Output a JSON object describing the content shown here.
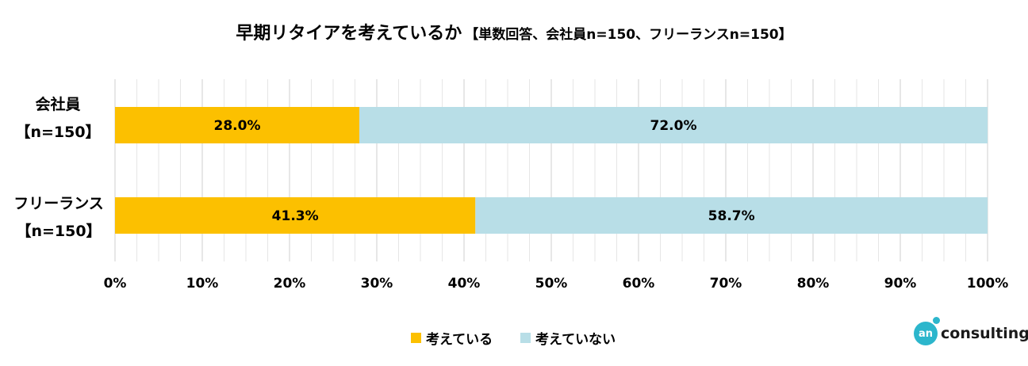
{
  "title": {
    "main": "早期リタイアを考えているか",
    "sub": "【単数回答、会社員n=150、フリーランスn=150】"
  },
  "chart_data": {
    "type": "bar",
    "orientation": "horizontal",
    "stacked": true,
    "percent": true,
    "categories": [
      {
        "name": "会社員",
        "n": "【n=150】"
      },
      {
        "name": "フリーランス",
        "n": "【n=150】"
      }
    ],
    "series": [
      {
        "name": "考えている",
        "values": [
          28.0,
          41.3
        ],
        "labels": [
          "28.0%",
          "41.3%"
        ],
        "color": "#fcc000"
      },
      {
        "name": "考えていない",
        "values": [
          72.0,
          58.7
        ],
        "labels": [
          "72.0%",
          "58.7%"
        ],
        "color": "#b8dee7"
      }
    ],
    "xlim": [
      0,
      100
    ],
    "xticks": [
      "0%",
      "10%",
      "20%",
      "30%",
      "40%",
      "50%",
      "60%",
      "70%",
      "80%",
      "90%",
      "100%"
    ],
    "grid": true,
    "legend_position": "bottom"
  },
  "logo": {
    "mark": "an",
    "word": "consulting"
  }
}
